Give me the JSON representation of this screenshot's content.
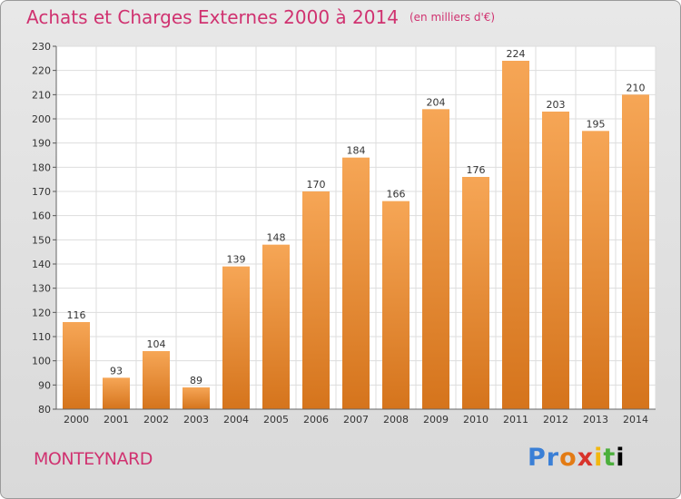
{
  "header": {
    "title": "Achats et Charges Externes 2000 à 2014",
    "unit": "(en milliers d'€)"
  },
  "footer": {
    "commune": "MONTEYNARD",
    "brand_letters": [
      "P",
      "r",
      "o",
      "x",
      "i",
      "t",
      "i"
    ]
  },
  "colors": {
    "title": "#d03270",
    "bar_top": "#f6a656",
    "bar_bottom": "#d5741c",
    "background": "#e2e2e2"
  },
  "chart_data": {
    "type": "bar",
    "title": "Achats et Charges Externes 2000 à 2014",
    "categories": [
      "2000",
      "2001",
      "2002",
      "2003",
      "2004",
      "2005",
      "2006",
      "2007",
      "2008",
      "2009",
      "2010",
      "2011",
      "2012",
      "2013",
      "2014"
    ],
    "values": [
      116,
      93,
      104,
      89,
      139,
      148,
      170,
      184,
      166,
      204,
      176,
      224,
      203,
      195,
      210
    ],
    "ylim": [
      80,
      230
    ],
    "yticks": [
      80,
      90,
      100,
      110,
      120,
      130,
      140,
      150,
      160,
      170,
      180,
      190,
      200,
      210,
      220,
      230
    ],
    "grid": true,
    "legend": "none"
  }
}
